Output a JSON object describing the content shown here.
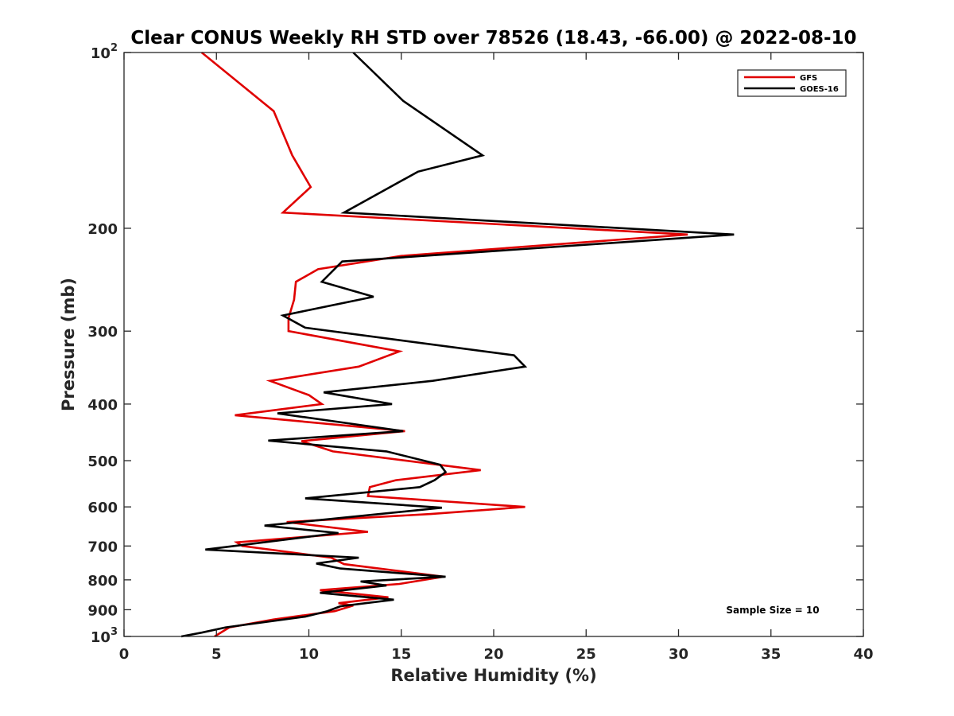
{
  "chart_data": {
    "type": "line",
    "title": "Clear CONUS Weekly RH STD over 78526 (18.43, -66.00) @ 2022-08-10",
    "xlabel": "Relative Humidity (%)",
    "ylabel": "Pressure (mb)",
    "xlim": [
      0,
      40
    ],
    "ylim": [
      100,
      1000
    ],
    "y_scale": "log",
    "y_reversed": true,
    "grid": false,
    "legend_position": "top-right",
    "x_ticks": [
      "0",
      "5",
      "10",
      "15",
      "20",
      "25",
      "30",
      "35",
      "40"
    ],
    "y_ticks": [
      {
        "value": 100,
        "label": "10",
        "sup": "2"
      },
      {
        "value": 200,
        "label": "200",
        "sup": ""
      },
      {
        "value": 300,
        "label": "300",
        "sup": ""
      },
      {
        "value": 400,
        "label": "400",
        "sup": ""
      },
      {
        "value": 500,
        "label": "500",
        "sup": ""
      },
      {
        "value": 600,
        "label": "600",
        "sup": ""
      },
      {
        "value": 700,
        "label": "700",
        "sup": ""
      },
      {
        "value": 800,
        "label": "800",
        "sup": ""
      },
      {
        "value": 900,
        "label": "900",
        "sup": ""
      },
      {
        "value": 1000,
        "label": "10",
        "sup": "3"
      }
    ],
    "annotation": "Sample Size = 10",
    "series": [
      {
        "name": "GFS",
        "color": "#e00000",
        "points": [
          [
            4.2,
            100
          ],
          [
            8.1,
            126
          ],
          [
            9.1,
            150
          ],
          [
            10.1,
            170
          ],
          [
            8.6,
            188
          ],
          [
            30.5,
            205
          ],
          [
            15,
            223
          ],
          [
            10.5,
            235
          ],
          [
            9.3,
            247
          ],
          [
            9.2,
            265
          ],
          [
            8.9,
            285
          ],
          [
            8.9,
            300
          ],
          [
            14.9,
            325
          ],
          [
            12.7,
            345
          ],
          [
            7.9,
            365
          ],
          [
            10,
            386
          ],
          [
            10.7,
            400
          ],
          [
            6,
            418
          ],
          [
            15.2,
            445
          ],
          [
            9.6,
            463
          ],
          [
            11.3,
            482
          ],
          [
            19.3,
            519
          ],
          [
            14.7,
            540
          ],
          [
            13.3,
            555
          ],
          [
            13.2,
            575
          ],
          [
            21.7,
            600
          ],
          [
            16.6,
            617
          ],
          [
            8.8,
            637
          ],
          [
            13.2,
            662
          ],
          [
            6.1,
            690
          ],
          [
            6.4,
            700
          ],
          [
            11.2,
            733
          ],
          [
            11.9,
            752
          ],
          [
            17.3,
            790
          ],
          [
            14.9,
            813
          ],
          [
            10.6,
            833
          ],
          [
            14.3,
            857
          ],
          [
            11.6,
            877
          ],
          [
            12.4,
            885
          ],
          [
            11.4,
            905
          ],
          [
            8.1,
            935
          ],
          [
            5.7,
            965
          ],
          [
            4.9,
            1000
          ]
        ]
      },
      {
        "name": "GOES-16",
        "color": "#000000",
        "points": [
          [
            12.4,
            100
          ],
          [
            15.1,
            121
          ],
          [
            19.4,
            150
          ],
          [
            15.9,
            160
          ],
          [
            11.9,
            188
          ],
          [
            33,
            205
          ],
          [
            11.8,
            228
          ],
          [
            10.7,
            247
          ],
          [
            13.5,
            262
          ],
          [
            8.6,
            282
          ],
          [
            9.8,
            296
          ],
          [
            21.1,
            330
          ],
          [
            21.7,
            345
          ],
          [
            16.7,
            365
          ],
          [
            10.8,
            382
          ],
          [
            14.5,
            400
          ],
          [
            8.3,
            415
          ],
          [
            15.1,
            445
          ],
          [
            7.8,
            462
          ],
          [
            14.2,
            482
          ],
          [
            17.1,
            508
          ],
          [
            17.4,
            523
          ],
          [
            16.8,
            540
          ],
          [
            16,
            555
          ],
          [
            9.8,
            580
          ],
          [
            17.2,
            602
          ],
          [
            7.6,
            646
          ],
          [
            11.6,
            665
          ],
          [
            4.4,
            710
          ],
          [
            12.7,
            733
          ],
          [
            10.4,
            750
          ],
          [
            11.7,
            765
          ],
          [
            17.4,
            790
          ],
          [
            12.8,
            805
          ],
          [
            14.2,
            818
          ],
          [
            10.6,
            842
          ],
          [
            14.6,
            865
          ],
          [
            11.7,
            888
          ],
          [
            11,
            905
          ],
          [
            9.8,
            925
          ],
          [
            5.5,
            965
          ],
          [
            4.2,
            985
          ],
          [
            3.1,
            1000
          ]
        ]
      }
    ]
  }
}
